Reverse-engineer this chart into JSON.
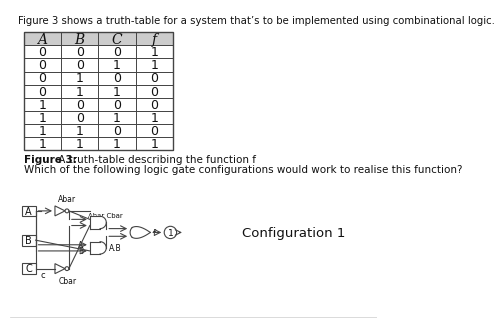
{
  "title_text": "Figure 3 shows a truth-table for a system that’s to be implemented using combinational logic.",
  "table_headers": [
    "A",
    "B",
    "C",
    "f"
  ],
  "table_data": [
    [
      0,
      0,
      0,
      1
    ],
    [
      0,
      0,
      1,
      1
    ],
    [
      0,
      1,
      0,
      0
    ],
    [
      0,
      1,
      1,
      0
    ],
    [
      1,
      0,
      0,
      0
    ],
    [
      1,
      0,
      1,
      1
    ],
    [
      1,
      1,
      0,
      0
    ],
    [
      1,
      1,
      1,
      1
    ]
  ],
  "caption_bold": "Figure 3:",
  "caption_rest": " A truth-table describing the function f",
  "question": "Which of the following logic gate configurations would work to realise this function?",
  "config_label": "Configuration 1",
  "bg_color": "#ffffff",
  "header_bg": "#cccccc",
  "table_bg": "#ffffff",
  "text_color": "#111111",
  "line_color": "#444444"
}
